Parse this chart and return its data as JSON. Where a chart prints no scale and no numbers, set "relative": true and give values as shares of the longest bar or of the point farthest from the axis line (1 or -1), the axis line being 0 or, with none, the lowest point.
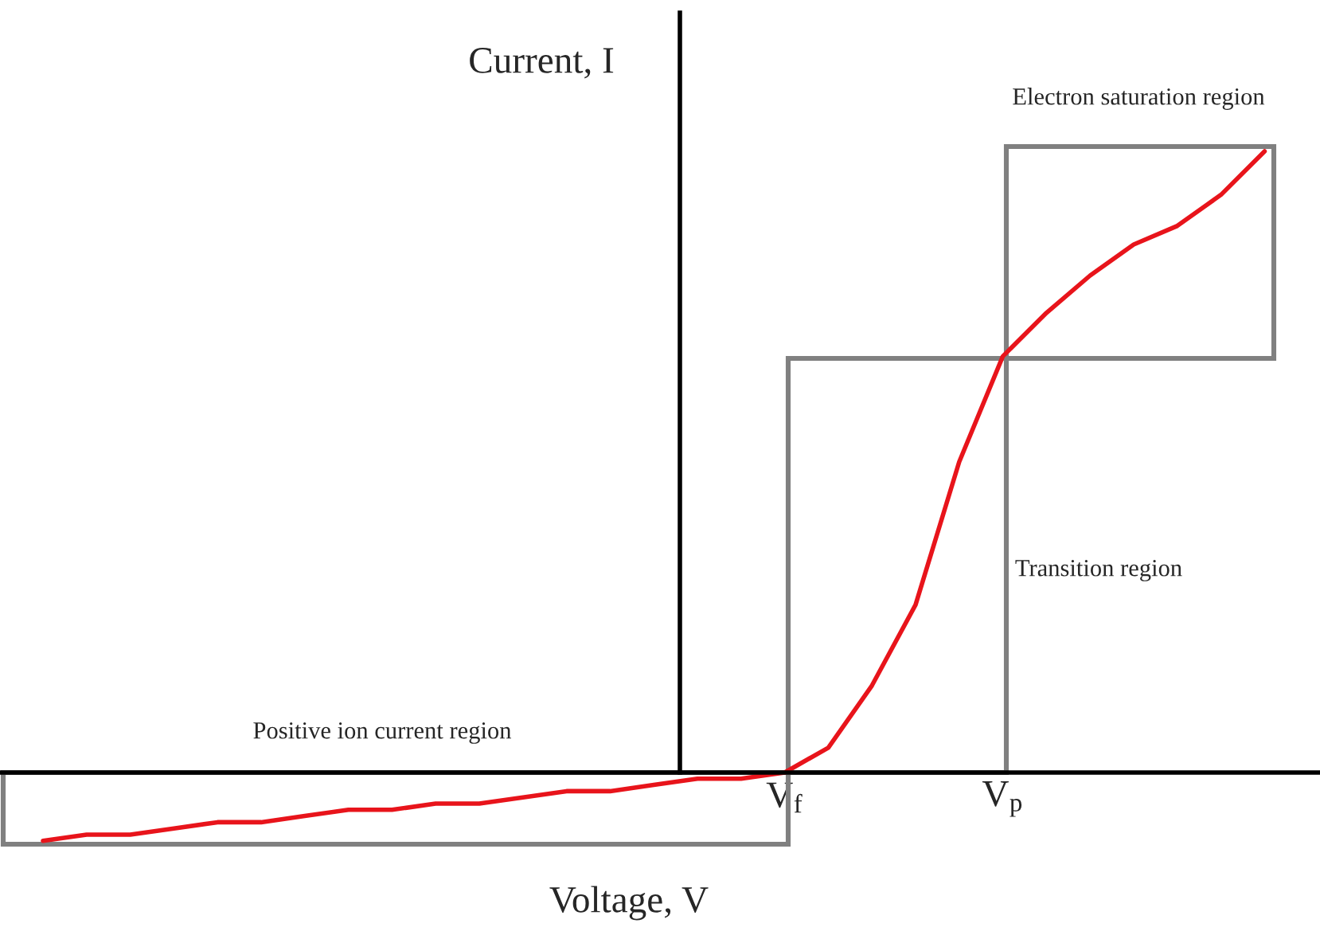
{
  "chart_data": {
    "type": "line",
    "relative": true,
    "xlabel": "Voltage, V",
    "ylabel": "Current, I",
    "categories": [
      null,
      null,
      null,
      null,
      null,
      null,
      null,
      null,
      null,
      null,
      null,
      null,
      null,
      null,
      null,
      null,
      null,
      "V$_{f}$",
      null,
      null,
      null,
      null,
      "V$_{p}$",
      null,
      null,
      null,
      null,
      null,
      null
    ],
    "series": [
      {
        "color": "#e8141b",
        "values": [
          -0.11,
          -0.1,
          -0.1,
          -0.09,
          -0.08,
          -0.08,
          -0.07,
          -0.06,
          -0.06,
          -0.05,
          -0.05,
          -0.04,
          -0.03,
          -0.03,
          -0.02,
          -0.01,
          -0.01,
          0,
          0.04,
          0.14,
          0.27,
          0.5,
          0.67,
          0.74,
          0.8,
          0.85,
          0.88,
          0.93,
          1.0
        ]
      }
    ],
    "annotations": [
      "Electron saturation region",
      "Transition region",
      "Positive ion current region"
    ],
    "grid": false,
    "legend": false,
    "marker": "none",
    "line_style": "solid"
  }
}
